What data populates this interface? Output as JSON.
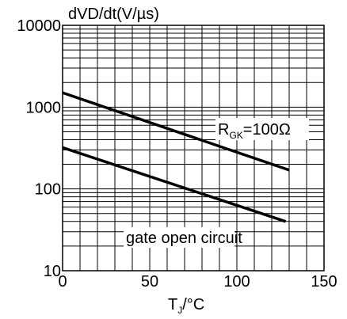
{
  "chart_data": {
    "type": "line",
    "title": "",
    "ylabel": "dVD/dt(V/µs)",
    "xlabel": {
      "main": "T",
      "sub": "J",
      "suffix": "/°C"
    },
    "x_ticks": [
      "0",
      "50",
      "100",
      "150"
    ],
    "y_ticks": [
      "10",
      "100",
      "1000",
      "10000"
    ],
    "xlim": [
      0,
      150
    ],
    "ylim": [
      10,
      10000
    ],
    "y_scale": "log",
    "grid": true,
    "series": [
      {
        "label_main": "R",
        "label_sub": "GK",
        "label_suffix": "=100Ω",
        "x": [
          0,
          130
        ],
        "y": [
          1500,
          170
        ]
      },
      {
        "label_main": "gate open circuit",
        "label_sub": "",
        "label_suffix": "",
        "x": [
          0,
          128
        ],
        "y": [
          320,
          40
        ]
      }
    ]
  }
}
